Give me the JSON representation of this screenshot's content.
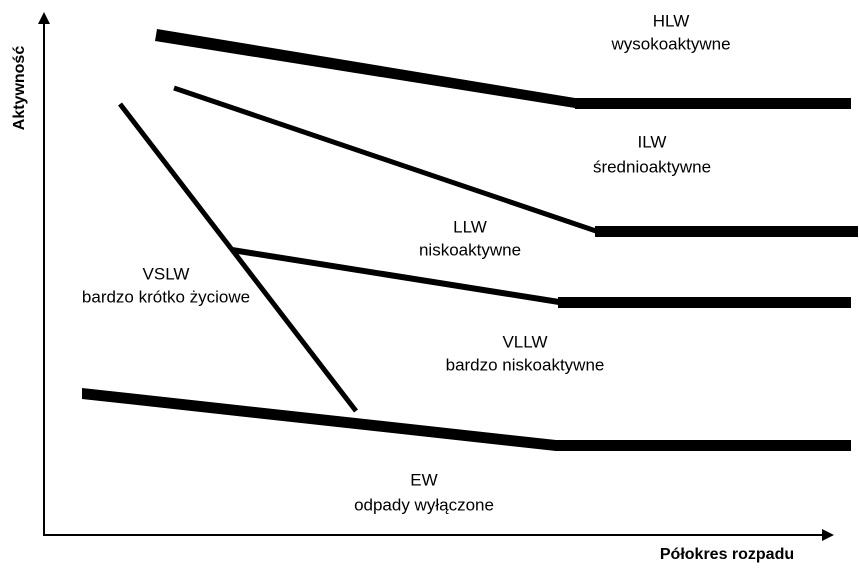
{
  "axes": {
    "y_label": "Aktywność",
    "x_label": "Półokres rozpadu"
  },
  "regions": [
    {
      "code": "HLW",
      "name": "wysokoaktywne"
    },
    {
      "code": "ILW",
      "name": "średnioaktywne"
    },
    {
      "code": "LLW",
      "name": "niskoaktywne"
    },
    {
      "code": "VSLW",
      "name": "bardzo krótko życiowe"
    },
    {
      "code": "VLLW",
      "name": "bardzo niskoaktywne"
    },
    {
      "code": "EW",
      "name": "odpady wyłączone"
    }
  ]
}
